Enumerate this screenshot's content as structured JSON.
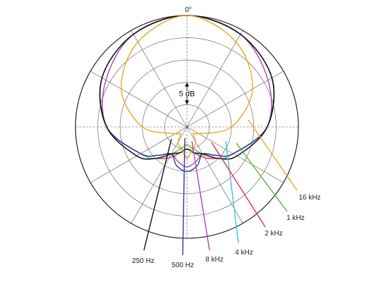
{
  "chart_data": {
    "type": "polar",
    "angle_unit": "degrees",
    "zero_direction": "top",
    "top_angle_label": "0°",
    "scale_step_label": "5 dB",
    "scale_step_db": 5,
    "range_db": [
      -25,
      0
    ],
    "ring_count": 5,
    "spoke_every_deg": 30,
    "grid": true,
    "series": [
      {
        "name": "250 Hz",
        "color": "#111111",
        "angles": [
          0,
          30,
          60,
          90,
          120,
          135,
          150,
          165,
          180
        ],
        "values_db": [
          0,
          -1,
          -3,
          -7,
          -12,
          -15,
          -18,
          -19,
          -20
        ]
      },
      {
        "name": "500 Hz",
        "color": "#2a3a9c",
        "angles": [
          0,
          30,
          60,
          90,
          120,
          135,
          150,
          165,
          180
        ],
        "values_db": [
          0,
          -1,
          -3,
          -7,
          -13,
          -16,
          -18,
          -16,
          -15
        ]
      },
      {
        "name": "8 kHz",
        "color": "#a84aa8",
        "angles": [
          0,
          30,
          60,
          90,
          120,
          135,
          150,
          165,
          180
        ],
        "values_db": [
          0,
          -1,
          -4,
          -7,
          -13,
          -16,
          -18,
          -17,
          -16
        ]
      },
      {
        "name": "4 kHz",
        "color": "#48c4c8",
        "angles": [
          0,
          30,
          60,
          90,
          120,
          135,
          150,
          165,
          180
        ],
        "values_db": [
          0,
          -1,
          -3,
          -7,
          -13,
          -15,
          -18,
          -19,
          -20
        ]
      },
      {
        "name": "2 kHz",
        "color": "#e0304a",
        "angles": [
          0,
          30,
          60,
          90,
          120,
          135,
          150,
          165,
          180
        ],
        "values_db": [
          0,
          -1,
          -3,
          -7,
          -12,
          -15,
          -17,
          -19,
          -20
        ]
      },
      {
        "name": "1 kHz",
        "color": "#58b838",
        "angles": [
          0,
          30,
          60,
          90,
          120,
          135,
          150,
          165,
          180
        ],
        "values_db": [
          0,
          -1,
          -3,
          -7,
          -12,
          -15,
          -18,
          -20,
          -21
        ]
      },
      {
        "name": "16 kHz",
        "color": "#e8a820",
        "angles": [
          0,
          30,
          60,
          90,
          120,
          135,
          150,
          165,
          180
        ],
        "values_db": [
          0,
          -3,
          -8,
          -15,
          -22,
          -23,
          -21,
          -20,
          -18
        ]
      }
    ]
  }
}
